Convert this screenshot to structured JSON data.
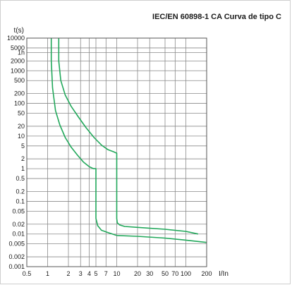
{
  "chart_data": {
    "type": "line",
    "title": "IEC/EN 60898-1 CA Curva de tipo C",
    "ylabel": "t(s)",
    "xlabel": "I/In",
    "x_scale": "log",
    "y_scale": "log",
    "xlim": [
      0.5,
      200
    ],
    "ylim": [
      0.001,
      10000
    ],
    "grid": true,
    "x_tick_labels": [
      "0.5",
      "1",
      "2",
      "3",
      "4",
      "5",
      "7",
      "10",
      "20",
      "30",
      "50",
      "70",
      "100",
      "200"
    ],
    "x_tick_values": [
      0.5,
      1,
      2,
      3,
      4,
      5,
      7,
      10,
      20,
      30,
      50,
      70,
      100,
      200
    ],
    "y_tick_labels": [
      "10000",
      "5000",
      "1h",
      "2000",
      "1000",
      "500",
      "200",
      "100",
      "50",
      "20",
      "10",
      "5",
      "2",
      "1",
      "0.5",
      "0.2",
      "0.1",
      "0.05",
      "0.02",
      "0.01",
      "0.005",
      "0.002",
      "0.001"
    ],
    "y_tick_values": [
      10000,
      5000,
      3600,
      2000,
      1000,
      500,
      200,
      100,
      50,
      20,
      10,
      5,
      2,
      1,
      0.5,
      0.2,
      0.1,
      0.05,
      0.02,
      0.01,
      0.005,
      0.002,
      0.001
    ],
    "series": [
      {
        "color": "#22a85b",
        "x": [
          1.13,
          1.13,
          1.18,
          1.3,
          1.5,
          1.8,
          2.2,
          2.7,
          3.3,
          4.0,
          4.6,
          5.0,
          5.0,
          5.0,
          5.3,
          6.0,
          7.5,
          10,
          20,
          50,
          100,
          200
        ],
        "y": [
          10000,
          2000,
          300,
          60,
          22,
          9,
          4.5,
          2.6,
          1.6,
          1.15,
          1.0,
          1.0,
          0.5,
          0.03,
          0.018,
          0.013,
          0.011,
          0.009,
          0.0085,
          0.0075,
          0.0065,
          0.0055
        ]
      },
      {
        "color": "#22a85b",
        "x": [
          1.45,
          1.45,
          1.55,
          1.8,
          2.2,
          2.8,
          3.6,
          4.7,
          6.0,
          7.5,
          9.0,
          10,
          10,
          10,
          10.2,
          11.0,
          13,
          20,
          50,
          100,
          150
        ],
        "y": [
          10000,
          2000,
          500,
          180,
          80,
          38,
          18,
          9,
          5.3,
          3.8,
          3.3,
          3.0,
          1.0,
          0.03,
          0.022,
          0.019,
          0.017,
          0.016,
          0.014,
          0.012,
          0.01
        ]
      }
    ]
  }
}
